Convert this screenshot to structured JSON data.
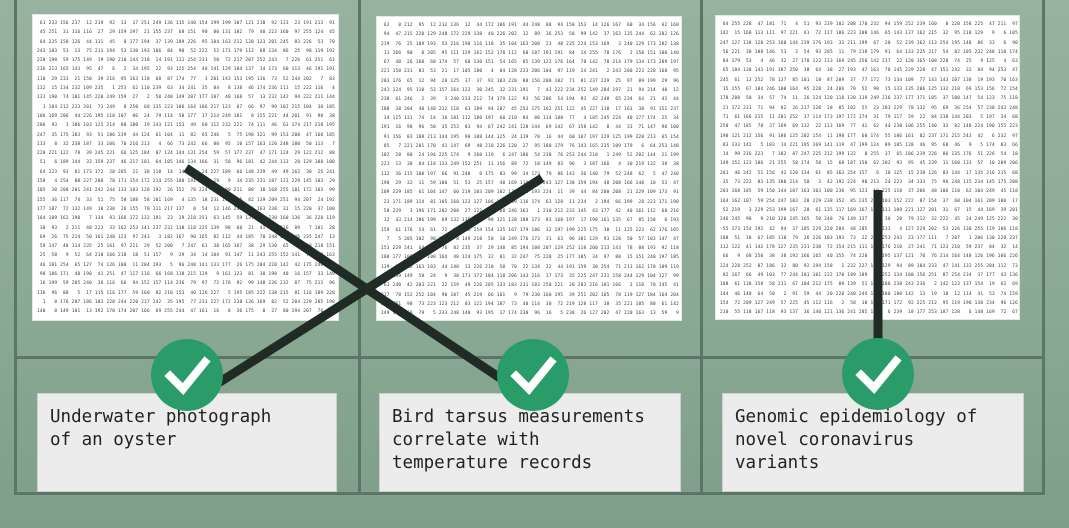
{
  "panels": [
    {
      "caption": "Underwater photograph\nof an oyster",
      "seed": 7
    },
    {
      "caption": "Bird tarsus measurements\ncorrelate with\ntemperature records",
      "seed": 19
    },
    {
      "caption": "Genomic epidemiology of\nnovel coronavirus\nvariants",
      "seed": 41
    }
  ],
  "check_icon": "check-circle-icon",
  "colors": {
    "check": "#2a9c6a",
    "line": "#1f2b24",
    "background": "#8fac99"
  }
}
